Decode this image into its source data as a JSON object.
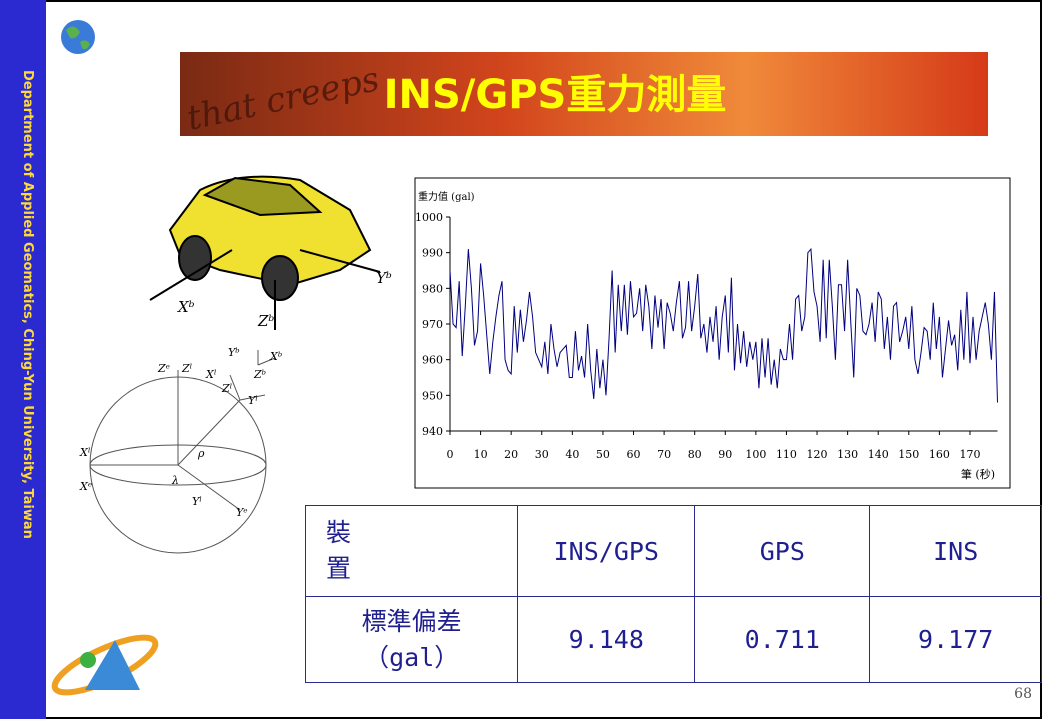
{
  "sidebar": "Department of Applied Geomatics, Ching-Yun University, Taiwan",
  "title": "INS/GPS重力測量",
  "banner_text": "that creeps",
  "diagram": {
    "labels": [
      "Xᵇ",
      "Yᵇ",
      "Zᵇ",
      "Zᵉ",
      "Zˡ",
      "Xˡ",
      "Yᵇ",
      "Xᵇ",
      "Zᵇ",
      "Zˡ",
      "Yˡ",
      "Xˡ",
      "Xᵉ",
      "λ",
      "ρ",
      "Yˡ",
      "Yᵉ"
    ]
  },
  "chart_data": {
    "type": "line",
    "y_label": "重力值 (gal)",
    "x_label": "筆 (秒)",
    "color": "#000080",
    "x": [
      0,
      1,
      2,
      3,
      4,
      5,
      6,
      7,
      8,
      9,
      10,
      11,
      12,
      13,
      14,
      15,
      16,
      17,
      18,
      19,
      20,
      21,
      22,
      23,
      24,
      25,
      26,
      27,
      28,
      29,
      30,
      31,
      32,
      33,
      34,
      35,
      36,
      37,
      38,
      39,
      40,
      41,
      42,
      43,
      44,
      45,
      46,
      47,
      48,
      49,
      50,
      51,
      52,
      53,
      54,
      55,
      56,
      57,
      58,
      59,
      60,
      61,
      62,
      63,
      64,
      65,
      66,
      67,
      68,
      69,
      70,
      71,
      72,
      73,
      74,
      75,
      76,
      77,
      78,
      79,
      80,
      81,
      82,
      83,
      84,
      85,
      86,
      87,
      88,
      89,
      90,
      91,
      92,
      93,
      94,
      95,
      96,
      97,
      98,
      99,
      100,
      101,
      102,
      103,
      104,
      105,
      106,
      107,
      108,
      109,
      110,
      111,
      112,
      113,
      114,
      115,
      116,
      117,
      118,
      119,
      120,
      121,
      122,
      123,
      124,
      125,
      126,
      127,
      128,
      129,
      130,
      131,
      132,
      133,
      134,
      135,
      136,
      137,
      138,
      139,
      140,
      141,
      142,
      143,
      144,
      145,
      146,
      147,
      148,
      149,
      150,
      151,
      152,
      153,
      154,
      155,
      156,
      157,
      158,
      159,
      160,
      161,
      162,
      163,
      164,
      165,
      166,
      167,
      168,
      169,
      170,
      171,
      172,
      173,
      174,
      175,
      176,
      177,
      178,
      179
    ],
    "values": [
      985,
      970,
      969,
      982,
      961,
      975,
      991,
      980,
      964,
      968,
      987,
      978,
      967,
      956,
      965,
      972,
      978,
      982,
      960,
      957,
      956,
      975,
      962,
      974,
      965,
      971,
      979,
      972,
      962,
      960,
      958,
      965,
      956,
      970,
      963,
      958,
      962,
      963,
      964,
      955,
      955,
      968,
      957,
      961,
      955,
      970,
      957,
      949,
      963,
      952,
      960,
      950,
      966,
      985,
      962,
      981,
      968,
      981,
      967,
      982,
      972,
      973,
      980,
      968,
      981,
      975,
      963,
      978,
      969,
      977,
      963,
      976,
      973,
      968,
      976,
      982,
      966,
      969,
      982,
      968,
      975,
      984,
      966,
      970,
      962,
      972,
      965,
      975,
      960,
      972,
      978,
      962,
      983,
      957,
      970,
      959,
      968,
      958,
      965,
      960,
      965,
      952,
      966,
      955,
      966,
      953,
      960,
      952,
      963,
      960,
      960,
      970,
      960,
      977,
      978,
      968,
      972,
      990,
      991,
      979,
      975,
      965,
      988,
      966,
      988,
      975,
      960,
      981,
      981,
      968,
      988,
      971,
      955,
      980,
      978,
      968,
      967,
      970,
      976,
      965,
      979,
      977,
      963,
      972,
      960,
      975,
      976,
      965,
      968,
      972,
      963,
      975,
      960,
      956,
      962,
      969,
      968,
      960,
      976,
      963,
      972,
      955,
      963,
      971,
      964,
      967,
      957,
      974,
      960,
      979,
      959,
      972,
      960,
      968,
      972,
      976,
      970,
      960,
      979,
      948
    ],
    "xlim": [
      0,
      179
    ],
    "xticks": [
      0,
      10,
      20,
      30,
      40,
      50,
      60,
      70,
      80,
      90,
      100,
      110,
      120,
      130,
      140,
      150,
      160,
      170
    ],
    "ylim": [
      940,
      1000
    ],
    "yticks": [
      940,
      950,
      960,
      970,
      980,
      990,
      1000
    ]
  },
  "table": {
    "header": [
      "裝置",
      "INS/GPS",
      "GPS",
      "INS"
    ],
    "rows": [
      [
        "標準偏差（gal）",
        "9.148",
        "0.711",
        "9.177"
      ]
    ]
  },
  "page_number": "68"
}
